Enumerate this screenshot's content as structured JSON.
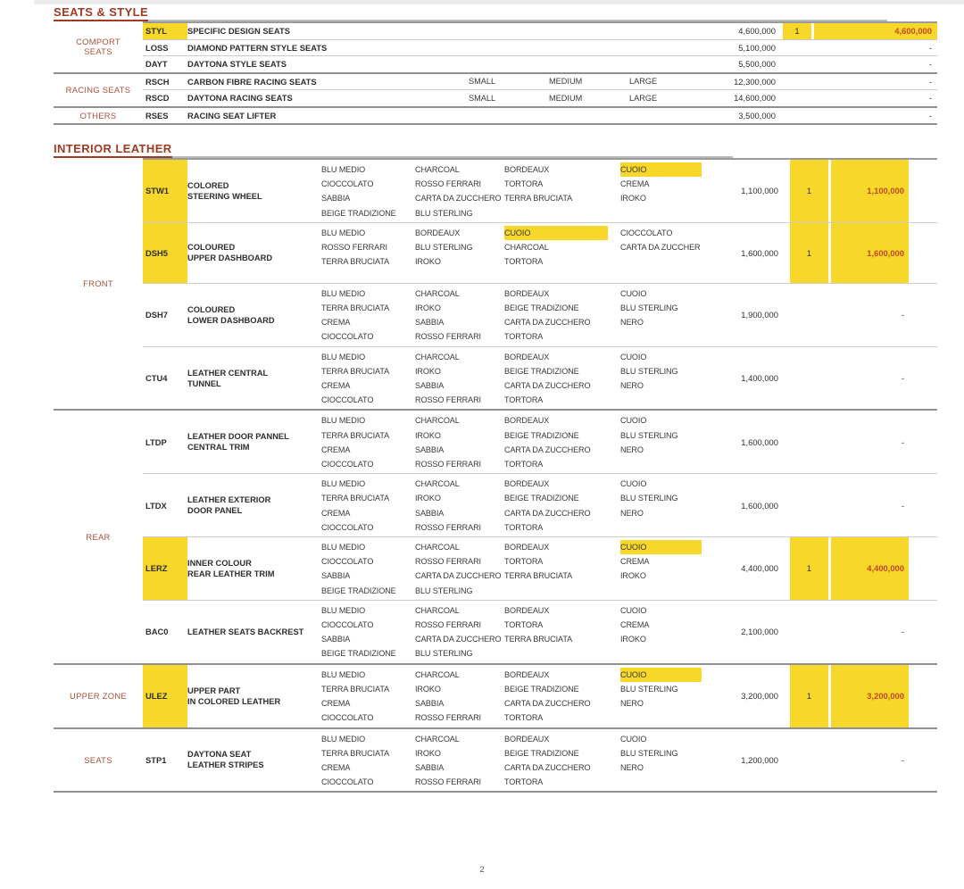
{
  "page": {
    "number": "2",
    "highlight_color": "#f6d72a",
    "accent_color": "#9e3b22",
    "selected_total_color": "#bf4a1e"
  },
  "sections": [
    {
      "title": "SEATS & STYLE",
      "type": "seats",
      "groups": [
        {
          "label_lines": [
            "COMPORT",
            "SEATS"
          ],
          "rows": [
            {
              "code": "STYL",
              "code_highlighted": true,
              "name": [
                "SPECIFIC DESIGN SEATS"
              ],
              "sizes": [],
              "price": "4,600,000",
              "qty": "1",
              "total": "4,600,000",
              "selected": true
            },
            {
              "code": "LOSS",
              "code_highlighted": false,
              "name": [
                "DIAMOND PATTERN STYLE SEATS"
              ],
              "sizes": [],
              "price": "5,100,000",
              "qty": "",
              "total": "-",
              "selected": false
            },
            {
              "code": "DAYT",
              "code_highlighted": false,
              "name": [
                "DAYTONA STYLE SEATS"
              ],
              "sizes": [],
              "price": "5,500,000",
              "qty": "",
              "total": "-",
              "selected": false
            }
          ]
        },
        {
          "label_lines": [
            "RACING SEATS"
          ],
          "rows": [
            {
              "code": "RSCH",
              "code_highlighted": false,
              "name": [
                "CARBON FIBRE RACING SEATS"
              ],
              "sizes": [
                "SMALL",
                "MEDIUM",
                "LARGE"
              ],
              "price": "12,300,000",
              "qty": "",
              "total": "-",
              "selected": false
            },
            {
              "code": "RSCD",
              "code_highlighted": false,
              "name": [
                "DAYTONA RACING SEATS"
              ],
              "sizes": [
                "SMALL",
                "MEDIUM",
                "LARGE"
              ],
              "price": "14,600,000",
              "qty": "",
              "total": "-",
              "selected": false
            }
          ]
        },
        {
          "label_lines": [
            "OTHERS"
          ],
          "rows": [
            {
              "code": "RSES",
              "code_highlighted": false,
              "name": [
                "RACING SEAT LIFTER"
              ],
              "sizes": [],
              "price": "3,500,000",
              "qty": "",
              "total": "-",
              "selected": false
            }
          ]
        }
      ]
    },
    {
      "title": "INTERIOR LEATHER",
      "type": "leather",
      "groups": [
        {
          "label_lines": [
            "FRONT"
          ],
          "rows": [
            {
              "code": "STW1",
              "code_highlighted": true,
              "name": [
                "COLORED",
                "STEERING WHEEL"
              ],
              "color_columns": [
                [
                  "BLU MEDIO",
                  "CIOCCOLATO",
                  "SABBIA",
                  "BEIGE TRADIZIONE"
                ],
                [
                  "CHARCOAL",
                  "ROSSO FERRARI",
                  "CARTA DA ZUCCHERO",
                  "BLU STERLING"
                ],
                [
                  "BORDEAUX",
                  "TORTORA",
                  "TERRA BRUCIATA"
                ],
                [
                  "CUOIO",
                  "CREMA",
                  "IROKO"
                ]
              ],
              "highlighted_colors": [
                "CUOIO"
              ],
              "price": "1,100,000",
              "qty": "1",
              "total": "1,100,000",
              "selected": true
            },
            {
              "code": "DSH5",
              "code_highlighted": true,
              "name": [
                "COLOURED",
                "UPPER DASHBOARD"
              ],
              "color_columns": [
                [
                  "BLU MEDIO",
                  "ROSSO FERRARI",
                  "TERRA BRUCIATA"
                ],
                [
                  "BORDEAUX",
                  "BLU STERLING",
                  "IROKO"
                ],
                [
                  "CUOIO",
                  "CHARCOAL",
                  "TORTORA"
                ],
                [
                  "CIOCCOLATO",
                  "CARTA DA ZUCCHER"
                ]
              ],
              "highlighted_colors": [
                "CUOIO"
              ],
              "price": "1,600,000",
              "qty": "1",
              "total": "1,600,000",
              "selected": true
            },
            {
              "code": "DSH7",
              "code_highlighted": false,
              "name": [
                "COLOURED",
                "LOWER DASHBOARD"
              ],
              "color_columns": [
                [
                  "BLU MEDIO",
                  "TERRA BRUCIATA",
                  "CREMA",
                  "CIOCCOLATO"
                ],
                [
                  "CHARCOAL",
                  "IROKO",
                  "SABBIA",
                  "ROSSO FERRARI"
                ],
                [
                  "BORDEAUX",
                  "BEIGE TRADIZIONE",
                  "CARTA DA ZUCCHERO",
                  "TORTORA"
                ],
                [
                  "CUOIO",
                  "BLU STERLING",
                  "NERO"
                ]
              ],
              "highlighted_colors": [],
              "price": "1,900,000",
              "qty": "",
              "total": "-",
              "selected": false
            },
            {
              "code": "CTU4",
              "code_highlighted": false,
              "name": [
                "LEATHER CENTRAL",
                "TUNNEL"
              ],
              "color_columns": [
                [
                  "BLU MEDIO",
                  "TERRA BRUCIATA",
                  "CREMA",
                  "CIOCCOLATO"
                ],
                [
                  "CHARCOAL",
                  "IROKO",
                  "SABBIA",
                  "ROSSO FERRARI"
                ],
                [
                  "BORDEAUX",
                  "BEIGE TRADIZIONE",
                  "CARTA DA ZUCCHERO",
                  "TORTORA"
                ],
                [
                  "CUOIO",
                  "BLU STERLING",
                  "NERO"
                ]
              ],
              "highlighted_colors": [],
              "price": "1,400,000",
              "qty": "",
              "total": "-",
              "selected": false
            }
          ]
        },
        {
          "label_lines": [
            "REAR"
          ],
          "rows": [
            {
              "code": "LTDP",
              "code_highlighted": false,
              "name": [
                "LEATHER DOOR PANNEL",
                "CENTRAL TRIM"
              ],
              "color_columns": [
                [
                  "BLU MEDIO",
                  "TERRA BRUCIATA",
                  "CREMA",
                  "CIOCCOLATO"
                ],
                [
                  "CHARCOAL",
                  "IROKO",
                  "SABBIA",
                  "ROSSO FERRARI"
                ],
                [
                  "BORDEAUX",
                  "BEIGE TRADIZIONE",
                  "CARTA DA ZUCCHERO",
                  "TORTORA"
                ],
                [
                  "CUOIO",
                  "BLU STERLING",
                  "NERO"
                ]
              ],
              "highlighted_colors": [],
              "price": "1,600,000",
              "qty": "",
              "total": "-",
              "selected": false
            },
            {
              "code": "LTDX",
              "code_highlighted": false,
              "name": [
                "LEATHER EXTERIOR",
                "DOOR PANEL"
              ],
              "color_columns": [
                [
                  "BLU MEDIO",
                  "TERRA BRUCIATA",
                  "CREMA",
                  "CIOCCOLATO"
                ],
                [
                  "CHARCOAL",
                  "IROKO",
                  "SABBIA",
                  "ROSSO FERRARI"
                ],
                [
                  "BORDEAUX",
                  "BEIGE TRADIZIONE",
                  "CARTA DA ZUCCHERO",
                  "TORTORA"
                ],
                [
                  "CUOIO",
                  "BLU STERLING",
                  "NERO"
                ]
              ],
              "highlighted_colors": [],
              "price": "1,600,000",
              "qty": "",
              "total": "-",
              "selected": false
            },
            {
              "code": "LERZ",
              "code_highlighted": true,
              "name": [
                "INNER COLOUR",
                "REAR LEATHER TRIM"
              ],
              "color_columns": [
                [
                  "BLU MEDIO",
                  "CIOCCOLATO",
                  "SABBIA",
                  "BEIGE TRADIZIONE"
                ],
                [
                  "CHARCOAL",
                  "ROSSO FERRARI",
                  "CARTA DA ZUCCHERO",
                  "BLU STERLING"
                ],
                [
                  "BORDEAUX",
                  "TORTORA",
                  "TERRA BRUCIATA"
                ],
                [
                  "CUOIO",
                  "CREMA",
                  "IROKO"
                ]
              ],
              "highlighted_colors": [
                "CUOIO"
              ],
              "price": "4,400,000",
              "qty": "1",
              "total": "4,400,000",
              "selected": true
            },
            {
              "code": "BAC0",
              "code_highlighted": false,
              "name": [
                "LEATHER SEATS BACKREST"
              ],
              "color_columns": [
                [
                  "BLU MEDIO",
                  "CIOCCOLATO",
                  "SABBIA",
                  "BEIGE TRADIZIONE"
                ],
                [
                  "CHARCOAL",
                  "ROSSO FERRARI",
                  "CARTA DA ZUCCHERO",
                  "BLU STERLING"
                ],
                [
                  "BORDEAUX",
                  "TORTORA",
                  "TERRA BRUCIATA"
                ],
                [
                  "CUOIO",
                  "CREMA",
                  "IROKO"
                ]
              ],
              "highlighted_colors": [],
              "price": "2,100,000",
              "qty": "",
              "total": "-",
              "selected": false
            }
          ]
        },
        {
          "label_lines": [
            "UPPER ZONE"
          ],
          "rows": [
            {
              "code": "ULEZ",
              "code_highlighted": true,
              "name": [
                "UPPER PART",
                "IN COLORED LEATHER"
              ],
              "color_columns": [
                [
                  "BLU MEDIO",
                  "TERRA BRUCIATA",
                  "CREMA",
                  "CIOCCOLATO"
                ],
                [
                  "CHARCOAL",
                  "IROKO",
                  "SABBIA",
                  "ROSSO FERRARI"
                ],
                [
                  "BORDEAUX",
                  "BEIGE TRADIZIONE",
                  "CARTA DA ZUCCHERO",
                  "TORTORA"
                ],
                [
                  "CUOIO",
                  "BLU STERLING",
                  "NERO"
                ]
              ],
              "highlighted_colors": [
                "CUOIO"
              ],
              "price": "3,200,000",
              "qty": "1",
              "total": "3,200,000",
              "selected": true
            }
          ]
        },
        {
          "label_lines": [
            "SEATS"
          ],
          "rows": [
            {
              "code": "STP1",
              "code_highlighted": false,
              "name": [
                "DAYTONA SEAT",
                "LEATHER STRIPES"
              ],
              "color_columns": [
                [
                  "BLU MEDIO",
                  "TERRA BRUCIATA",
                  "CREMA",
                  "CIOCCOLATO"
                ],
                [
                  "CHARCOAL",
                  "IROKO",
                  "SABBIA",
                  "ROSSO FERRARI"
                ],
                [
                  "BORDEAUX",
                  "BEIGE TRADIZIONE",
                  "CARTA DA ZUCCHERO",
                  "TORTORA"
                ],
                [
                  "CUOIO",
                  "BLU STERLING",
                  "NERO"
                ]
              ],
              "highlighted_colors": [],
              "price": "1,200,000",
              "qty": "",
              "total": "-",
              "selected": false
            }
          ]
        }
      ]
    }
  ]
}
